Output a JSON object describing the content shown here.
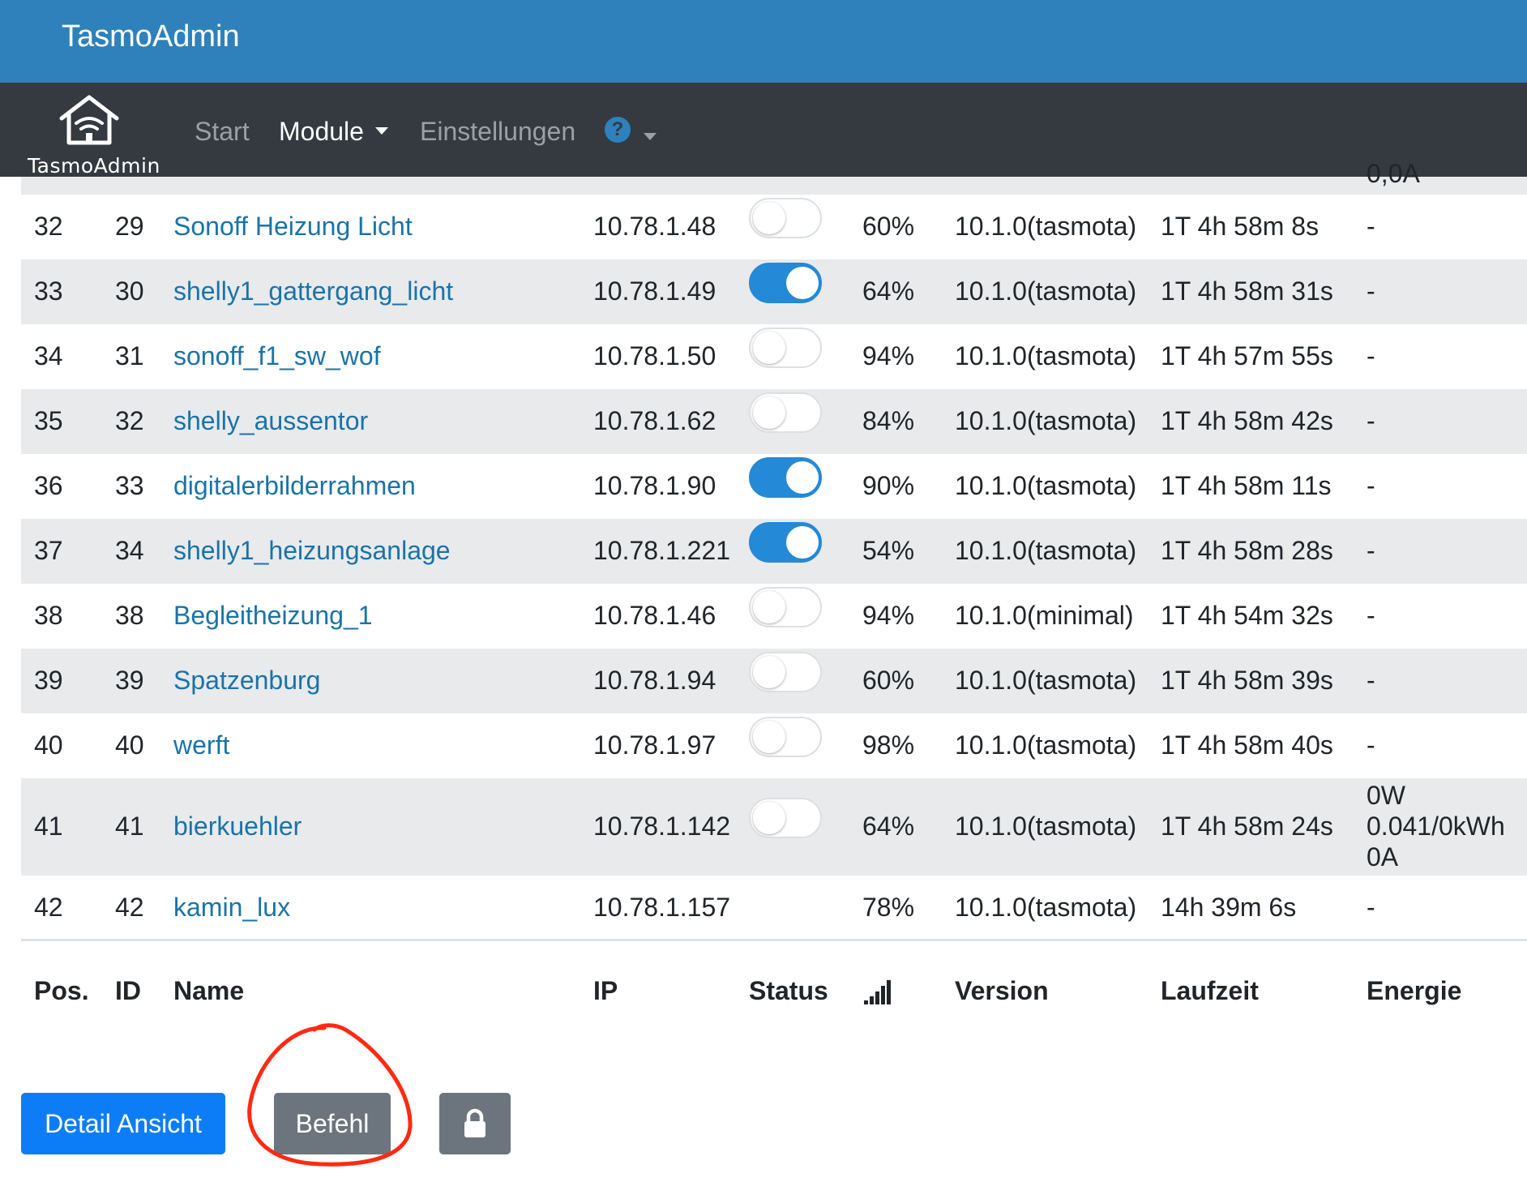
{
  "app": {
    "title": "TasmoAdmin"
  },
  "nav": {
    "brand_label": "TasmoAdmin",
    "items": [
      {
        "label": "Start",
        "active": false
      },
      {
        "label": "Module",
        "active": true,
        "dropdown": true
      },
      {
        "label": "Einstellungen",
        "active": false
      }
    ],
    "help_icon": "?"
  },
  "table": {
    "cut_off_text": "0,0A",
    "headers": {
      "pos": "Pos.",
      "id": "ID",
      "name": "Name",
      "ip": "IP",
      "status": "Status",
      "signal_icon": "wifi-signal-icon",
      "version": "Version",
      "uptime": "Laufzeit",
      "energy": "Energie"
    },
    "rows": [
      {
        "pos": "32",
        "id": "29",
        "name": "Sonoff Heizung Licht",
        "ip": "10.78.1.48",
        "status": "off",
        "signal": "60%",
        "version": "10.1.0(tasmota)",
        "uptime": "1T 4h 58m 8s",
        "energy": "-"
      },
      {
        "pos": "33",
        "id": "30",
        "name": "shelly1_gattergang_licht",
        "ip": "10.78.1.49",
        "status": "on",
        "signal": "64%",
        "version": "10.1.0(tasmota)",
        "uptime": "1T 4h 58m 31s",
        "energy": "-"
      },
      {
        "pos": "34",
        "id": "31",
        "name": "sonoff_f1_sw_wof",
        "ip": "10.78.1.50",
        "status": "off",
        "signal": "94%",
        "version": "10.1.0(tasmota)",
        "uptime": "1T 4h 57m 55s",
        "energy": "-"
      },
      {
        "pos": "35",
        "id": "32",
        "name": "shelly_aussentor",
        "ip": "10.78.1.62",
        "status": "off",
        "signal": "84%",
        "version": "10.1.0(tasmota)",
        "uptime": "1T 4h 58m 42s",
        "energy": "-"
      },
      {
        "pos": "36",
        "id": "33",
        "name": "digitalerbilderrahmen",
        "ip": "10.78.1.90",
        "status": "on",
        "signal": "90%",
        "version": "10.1.0(tasmota)",
        "uptime": "1T 4h 58m 11s",
        "energy": "-"
      },
      {
        "pos": "37",
        "id": "34",
        "name": "shelly1_heizungsanlage",
        "ip": "10.78.1.221",
        "status": "on",
        "signal": "54%",
        "version": "10.1.0(tasmota)",
        "uptime": "1T 4h 58m 28s",
        "energy": "-"
      },
      {
        "pos": "38",
        "id": "38",
        "name": "Begleitheizung_1",
        "ip": "10.78.1.46",
        "status": "off",
        "signal": "94%",
        "version": "10.1.0(minimal)",
        "uptime": "1T 4h 54m 32s",
        "energy": "-"
      },
      {
        "pos": "39",
        "id": "39",
        "name": "Spatzenburg",
        "ip": "10.78.1.94",
        "status": "off",
        "signal": "60%",
        "version": "10.1.0(tasmota)",
        "uptime": "1T 4h 58m 39s",
        "energy": "-"
      },
      {
        "pos": "40",
        "id": "40",
        "name": "werft",
        "ip": "10.78.1.97",
        "status": "off",
        "signal": "98%",
        "version": "10.1.0(tasmota)",
        "uptime": "1T 4h 58m 40s",
        "energy": "-"
      },
      {
        "pos": "41",
        "id": "41",
        "name": "bierkuehler",
        "ip": "10.78.1.142",
        "status": "off",
        "signal": "64%",
        "version": "10.1.0(tasmota)",
        "uptime": "1T 4h 58m 24s",
        "energy": [
          "0W",
          "0.041/0kWh",
          "0A"
        ]
      },
      {
        "pos": "42",
        "id": "42",
        "name": "kamin_lux",
        "ip": "10.78.1.157",
        "status": "none",
        "signal": "78%",
        "version": "10.1.0(tasmota)",
        "uptime": "14h 39m 6s",
        "energy": "-"
      }
    ]
  },
  "actions": {
    "detail_label": "Detail Ansicht",
    "command_label": "Befehl",
    "lock_icon": "lock-icon"
  },
  "annotation": {
    "color": "#ff2a12"
  },
  "colors": {
    "topbar": "#2e81bb",
    "navbar": "#343a40",
    "link": "#1a73a8",
    "toggle_on": "#2489d6",
    "primary_button": "#0d7df7",
    "secondary_button": "#6c757d"
  }
}
